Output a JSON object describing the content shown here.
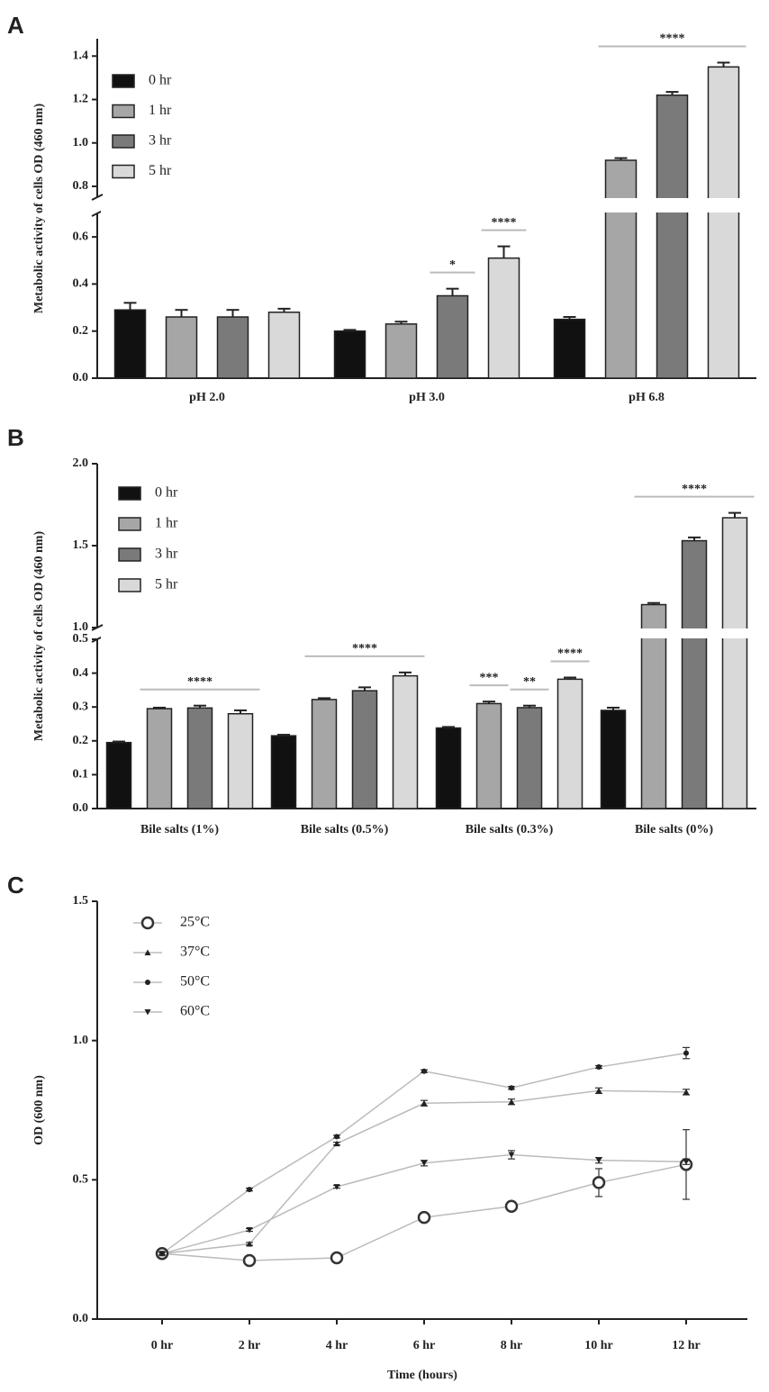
{
  "chart_data": [
    {
      "type": "bar",
      "panel": "A",
      "ylabel": "Metabolic activity of cells OD (460 nm)",
      "categories": [
        "pH 2.0",
        "pH 3.0",
        "pH 6.8"
      ],
      "series": [
        {
          "name": "0 hr",
          "color": "#111111",
          "values": [
            0.29,
            0.2,
            0.25
          ],
          "errors": [
            0.03,
            0.005,
            0.01
          ]
        },
        {
          "name": "1 hr",
          "color": "#a6a6a6",
          "values": [
            0.26,
            0.23,
            0.92
          ],
          "errors": [
            0.03,
            0.01,
            0.01
          ]
        },
        {
          "name": "3 hr",
          "color": "#7a7a7a",
          "values": [
            0.26,
            0.35,
            1.22
          ],
          "errors": [
            0.03,
            0.03,
            0.015
          ]
        },
        {
          "name": "5 hr",
          "color": "#d9d9d9",
          "values": [
            0.28,
            0.51,
            1.35
          ],
          "errors": [
            0.015,
            0.05,
            0.02
          ]
        }
      ],
      "ylim": [
        0,
        1.48
      ],
      "y_break": [
        0.7,
        0.75
      ],
      "yticks": [
        {
          "value": 0,
          "label": "0.0"
        },
        0.2,
        0.4,
        0.6,
        0.8,
        {
          "value": 1,
          "label": "1.0"
        },
        1.2,
        1.4
      ],
      "annotations": [
        "*",
        "****",
        "****"
      ],
      "grid": false
    },
    {
      "type": "bar",
      "panel": "B",
      "ylabel": "Metabolic activity of cells OD (460 nm)",
      "categories": [
        "Bile salts (1%)",
        "Bile salts (0.5%)",
        "Bile salts (0.3%)",
        "Bile salts (0%)"
      ],
      "series": [
        {
          "name": "0 hr",
          "color": "#111111",
          "values": [
            0.195,
            0.215,
            0.238,
            0.29
          ],
          "errors": [
            0.003,
            0.003,
            0.003,
            0.008
          ]
        },
        {
          "name": "1 hr",
          "color": "#a6a6a6",
          "values": [
            0.295,
            0.322,
            0.31,
            1.14
          ],
          "errors": [
            0.003,
            0.004,
            0.006,
            0.01
          ]
        },
        {
          "name": "3 hr",
          "color": "#7a7a7a",
          "values": [
            0.297,
            0.348,
            0.298,
            1.53
          ],
          "errors": [
            0.007,
            0.01,
            0.006,
            0.02
          ]
        },
        {
          "name": "5 hr",
          "color": "#d9d9d9",
          "values": [
            0.28,
            0.392,
            0.382,
            1.67
          ],
          "errors": [
            0.01,
            0.01,
            0.005,
            0.03
          ]
        }
      ],
      "ylim": [
        0,
        2
      ],
      "y_break": [
        0.5,
        1
      ],
      "yticks": [
        {
          "value": 0,
          "label": "0.0"
        },
        0.1,
        0.2,
        0.3,
        0.4,
        0.5,
        {
          "value": 1,
          "label": "1.0"
        },
        1.5,
        {
          "value": 2,
          "label": "2.0"
        }
      ],
      "annotations": [
        "****",
        "****",
        "***",
        "**",
        "****",
        "****"
      ],
      "grid": false
    },
    {
      "type": "line",
      "panel": "C",
      "ylabel": "OD (600 nm)",
      "xlabel": "Time (hours)",
      "categories": [
        "0 hr",
        "2 hr",
        "4 hr",
        "6 hr",
        "8 hr",
        "10 hr",
        "12 hr"
      ],
      "series": [
        {
          "name": "25°C",
          "color": "#bbbbbb",
          "marker": "circle",
          "values": [
            0.235,
            0.21,
            0.22,
            0.365,
            0.405,
            0.49,
            0.555
          ],
          "errors": [
            0.01,
            0.01,
            0.01,
            0.01,
            0.015,
            0.05,
            0.125
          ]
        },
        {
          "name": "37°C",
          "color": "#bbbbbb",
          "marker": "triangle-up",
          "values": [
            0.235,
            0.27,
            0.63,
            0.775,
            0.78,
            0.82,
            0.815
          ],
          "errors": [
            0.005,
            0.005,
            0.005,
            0.01,
            0.01,
            0.01,
            0.01
          ]
        },
        {
          "name": "50°C",
          "color": "#bbbbbb",
          "marker": "dot",
          "values": [
            0.235,
            0.465,
            0.655,
            0.89,
            0.83,
            0.905,
            0.955
          ],
          "errors": [
            0.005,
            0.005,
            0.005,
            0.005,
            0.005,
            0.005,
            0.02
          ]
        },
        {
          "name": "60°C",
          "color": "#bbbbbb",
          "marker": "triangle-down",
          "values": [
            0.235,
            0.32,
            0.475,
            0.56,
            0.59,
            0.57,
            0.565
          ],
          "errors": [
            0.005,
            0.005,
            0.005,
            0.01,
            0.015,
            0.01,
            0.01
          ]
        }
      ],
      "ylim": [
        0,
        1.5
      ],
      "yticks": [
        {
          "value": 0,
          "label": "0.0"
        },
        0.5,
        {
          "value": 1,
          "label": "1.0"
        },
        1.5
      ],
      "grid": false
    }
  ]
}
